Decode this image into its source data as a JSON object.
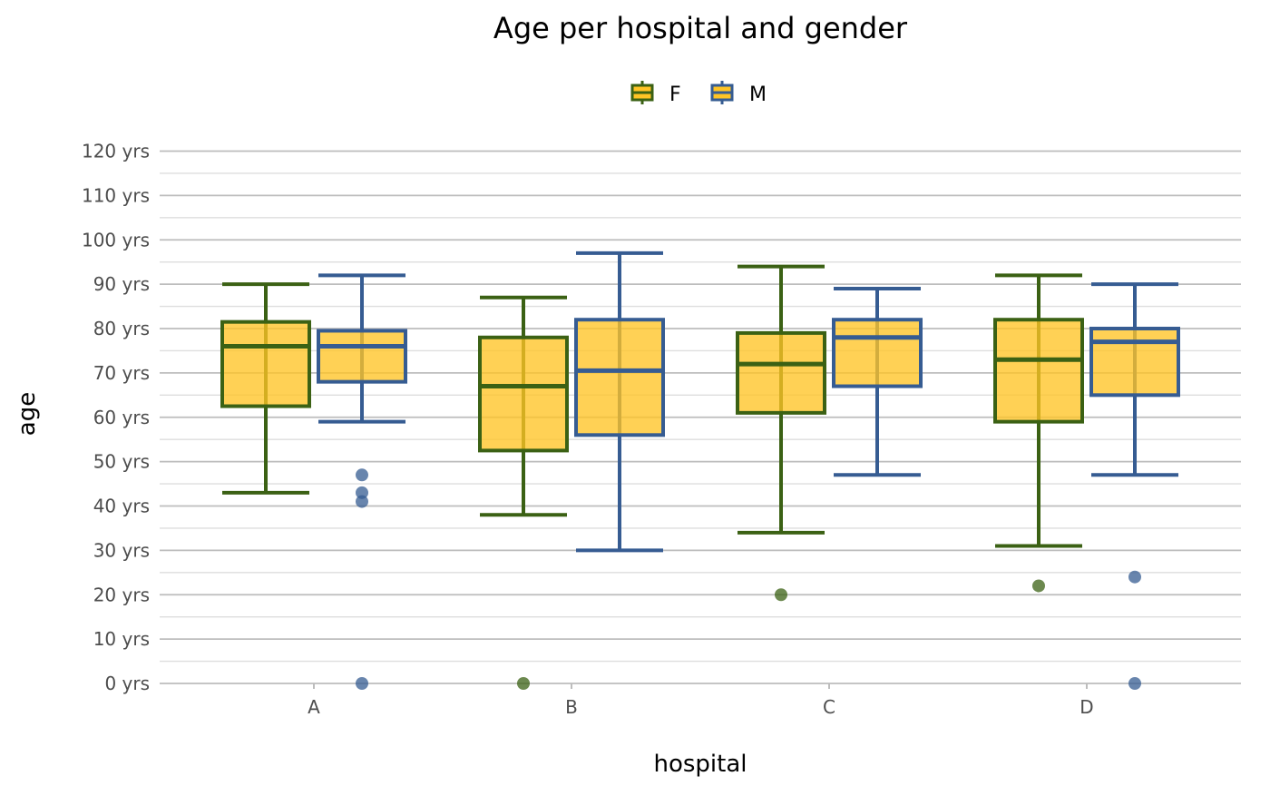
{
  "chart_data": {
    "type": "boxplot",
    "title": "Age per hospital and gender",
    "xlabel": "hospital",
    "ylabel": "age",
    "categories": [
      "A",
      "B",
      "C",
      "D"
    ],
    "ylim": [
      0,
      120
    ],
    "yticks": [
      0,
      10,
      20,
      30,
      40,
      50,
      60,
      70,
      80,
      90,
      100,
      110,
      120
    ],
    "ytick_labels": [
      "0 yrs",
      "10 yrs",
      "20 yrs",
      "30 yrs",
      "40 yrs",
      "50 yrs",
      "60 yrs",
      "70 yrs",
      "80 yrs",
      "90 yrs",
      "100 yrs",
      "110 yrs",
      "120 yrs"
    ],
    "grid": true,
    "legend_position": "top",
    "colors": {
      "fill": "#ffc425",
      "F": "#3b6114",
      "M": "#365c92",
      "grid_major": "#bdbdbd",
      "grid_minor": "#dedede"
    },
    "series": [
      {
        "name": "F",
        "boxes": [
          {
            "category": "A",
            "lower_whisker": 43,
            "q1": 62.5,
            "median": 76,
            "q3": 81.5,
            "upper_whisker": 90,
            "outliers": []
          },
          {
            "category": "B",
            "lower_whisker": 38,
            "q1": 52.5,
            "median": 67,
            "q3": 78,
            "upper_whisker": 87,
            "outliers": [
              0
            ]
          },
          {
            "category": "C",
            "lower_whisker": 34,
            "q1": 61,
            "median": 72,
            "q3": 79,
            "upper_whisker": 94,
            "outliers": [
              20
            ]
          },
          {
            "category": "D",
            "lower_whisker": 31,
            "q1": 59,
            "median": 73,
            "q3": 82,
            "upper_whisker": 92,
            "outliers": [
              22
            ]
          }
        ]
      },
      {
        "name": "M",
        "boxes": [
          {
            "category": "A",
            "lower_whisker": 59,
            "q1": 68,
            "median": 76,
            "q3": 79.5,
            "upper_whisker": 92,
            "outliers": [
              47,
              43,
              41,
              0
            ]
          },
          {
            "category": "B",
            "lower_whisker": 30,
            "q1": 56,
            "median": 70.5,
            "q3": 82,
            "upper_whisker": 97,
            "outliers": []
          },
          {
            "category": "C",
            "lower_whisker": 47,
            "q1": 67,
            "median": 78,
            "q3": 82,
            "upper_whisker": 89,
            "outliers": []
          },
          {
            "category": "D",
            "lower_whisker": 47,
            "q1": 65,
            "median": 77,
            "q3": 80,
            "upper_whisker": 90,
            "outliers": [
              24,
              0
            ]
          }
        ]
      }
    ]
  }
}
